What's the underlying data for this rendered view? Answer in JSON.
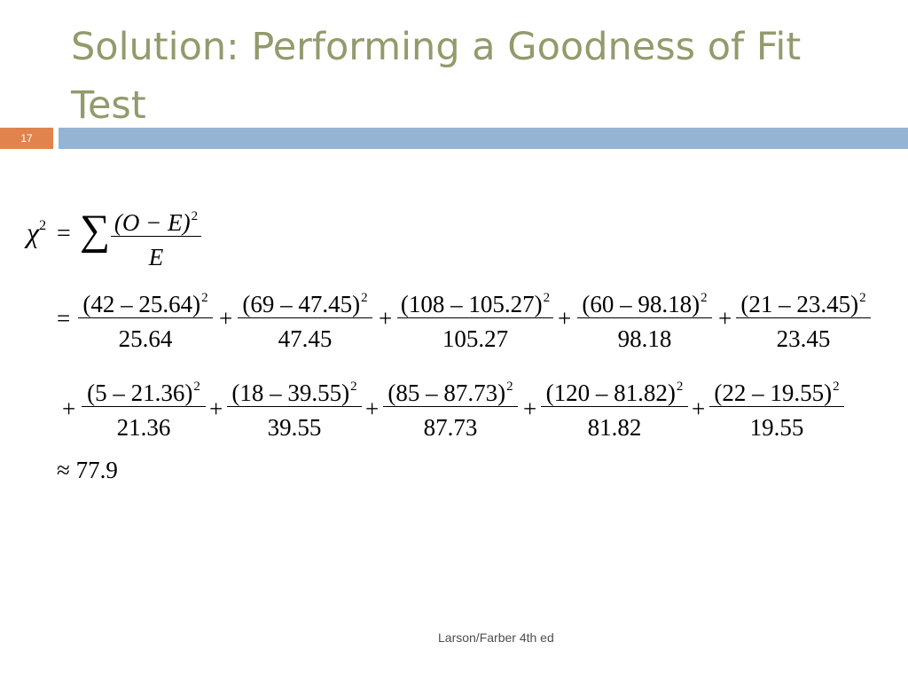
{
  "slide": {
    "title": "Solution: Performing a Goodness of Fit Test",
    "slide_number": "17",
    "footer": "Larson/Farber 4th ed"
  },
  "formula": {
    "chi": "χ",
    "chi_exp": "2",
    "equals": "=",
    "sigma": "∑",
    "numerator": "(O − E)",
    "numerator_exp": "2",
    "denominator": "E"
  },
  "terms_row1": [
    {
      "num": "(42 – 25.64)",
      "den": "25.64"
    },
    {
      "num": "(69 – 47.45)",
      "den": "47.45"
    },
    {
      "num": "(108 – 105.27)",
      "den": "105.27"
    },
    {
      "num": "(60 – 98.18)",
      "den": "98.18"
    },
    {
      "num": "(21 – 23.45)",
      "den": "23.45"
    }
  ],
  "terms_row2": [
    {
      "num": "(5 – 21.36)",
      "den": "21.36"
    },
    {
      "num": "(18 – 39.55)",
      "den": "39.55"
    },
    {
      "num": "(85 – 87.73)",
      "den": "87.73"
    },
    {
      "num": "(120 – 81.82)",
      "den": "81.82"
    },
    {
      "num": "(22 – 19.55)",
      "den": "19.55"
    }
  ],
  "exponent": "2",
  "plus": "+",
  "result": "≈ 77.9"
}
